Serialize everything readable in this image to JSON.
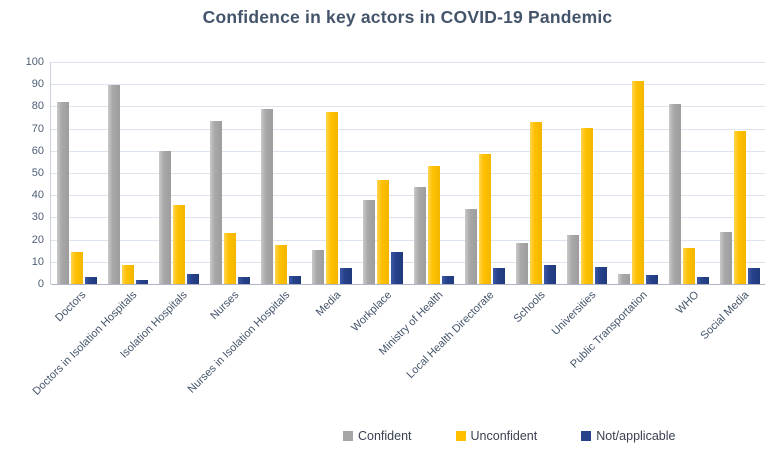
{
  "title": "Confidence in key actors in COVID-19 Pandemic",
  "chart_data": {
    "type": "bar",
    "title": "Confidence in key actors in COVID-19 Pandemic",
    "categories": [
      "Doctors",
      "Doctors in Isolation Hospitals",
      "Isolation Hospitals",
      "Nurses",
      "Nurses in Isolation Hospitals",
      "Media",
      "Workplace",
      "Ministry of Health",
      "Local Health Directorate",
      "Schools",
      "Universities",
      "Public Transportation",
      "WHO",
      "Social Media"
    ],
    "series": [
      {
        "name": "Confident",
        "color": "#a6a6a6",
        "values": [
          82,
          89.5,
          60,
          73.5,
          79,
          15.5,
          38,
          43.5,
          34,
          18.5,
          22,
          4.5,
          81,
          23.5
        ]
      },
      {
        "name": "Unconfident",
        "color": "#ffc000",
        "values": [
          14.5,
          8.5,
          35.5,
          23,
          17.5,
          77.5,
          47,
          53,
          58.5,
          73,
          70.5,
          91.5,
          16,
          69
        ]
      },
      {
        "name": "Not/applicable",
        "color": "#27418b",
        "values": [
          3,
          2,
          4.5,
          3,
          3.5,
          7,
          14.5,
          3.5,
          7,
          8.5,
          7.5,
          4,
          3,
          7
        ]
      }
    ],
    "xlabel": "",
    "ylabel": "",
    "ylim": [
      0,
      100
    ],
    "yticks": [
      0,
      10,
      20,
      30,
      40,
      50,
      60,
      70,
      80,
      90,
      100
    ],
    "grid": true,
    "legend_position": "bottom"
  }
}
